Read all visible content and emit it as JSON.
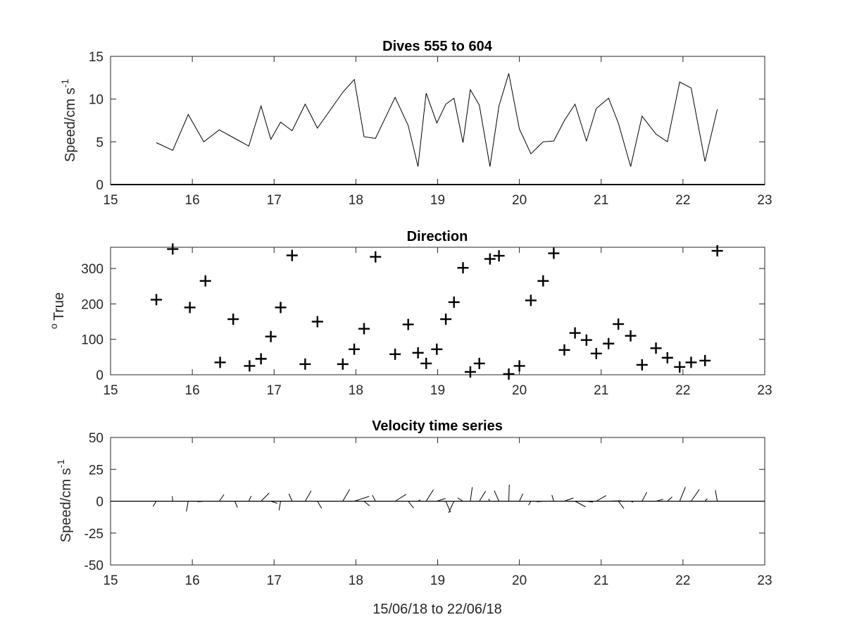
{
  "figure": {
    "background": "#ffffff",
    "axis_color": "#262626",
    "line_color": "#000000"
  },
  "chart_data": [
    {
      "type": "line",
      "title": "Dives 555 to 604",
      "ylabel": "Speed/cm s",
      "ylabel_sup": "-1",
      "xlim": [
        15,
        23
      ],
      "ylim": [
        0,
        15
      ],
      "xticks": [
        "15",
        "16",
        "17",
        "18",
        "19",
        "20",
        "21",
        "22",
        "23"
      ],
      "yticks": [
        "0",
        "5",
        "10",
        "15"
      ],
      "x": [
        15.56,
        15.76,
        15.95,
        16.14,
        16.33,
        16.52,
        16.69,
        16.84,
        16.96,
        17.08,
        17.22,
        17.38,
        17.53,
        17.84,
        17.98,
        18.1,
        18.24,
        18.48,
        18.64,
        18.76,
        18.86,
        18.99,
        19.1,
        19.2,
        19.31,
        19.4,
        19.51,
        19.64,
        19.75,
        19.87,
        20.0,
        20.14,
        20.29,
        20.42,
        20.55,
        20.68,
        20.82,
        20.94,
        21.09,
        21.21,
        21.36,
        21.5,
        21.67,
        21.81,
        21.96,
        22.1,
        22.27,
        22.42
      ],
      "y": [
        4.9,
        4.0,
        8.2,
        5.0,
        6.4,
        5.4,
        4.5,
        9.2,
        5.3,
        7.3,
        6.3,
        9.4,
        6.6,
        10.8,
        12.3,
        5.6,
        5.4,
        10.2,
        6.9,
        2.1,
        10.7,
        7.2,
        9.4,
        10.1,
        4.9,
        11.1,
        9.3,
        2.1,
        9.2,
        13.0,
        6.5,
        3.6,
        5.0,
        5.1,
        7.5,
        9.4,
        5.1,
        8.9,
        10.1,
        7.2,
        2.1,
        8.0,
        5.9,
        5.0,
        12.0,
        11.3,
        2.7,
        8.8
      ]
    },
    {
      "type": "scatter",
      "title": "Direction",
      "ylabel": "True",
      "ylabel_sup": "o",
      "xlim": [
        15,
        23
      ],
      "ylim": [
        0,
        360
      ],
      "xticks": [
        "15",
        "16",
        "17",
        "18",
        "19",
        "20",
        "21",
        "22",
        "23"
      ],
      "yticks": [
        "0",
        "100",
        "200",
        "300"
      ],
      "marker": "+",
      "x": [
        15.56,
        15.76,
        15.97,
        16.16,
        16.34,
        16.5,
        16.7,
        16.84,
        16.96,
        17.08,
        17.22,
        17.38,
        17.53,
        17.84,
        17.98,
        18.1,
        18.24,
        18.48,
        18.64,
        18.76,
        18.86,
        18.99,
        19.1,
        19.2,
        19.31,
        19.4,
        19.51,
        19.64,
        19.75,
        19.87,
        20.0,
        20.14,
        20.29,
        20.42,
        20.55,
        20.68,
        20.82,
        20.94,
        21.09,
        21.21,
        21.36,
        21.5,
        21.67,
        21.81,
        21.96,
        22.1,
        22.27,
        22.42
      ],
      "y": [
        212,
        355,
        190,
        265,
        35,
        157,
        25,
        45,
        108,
        190,
        337,
        30,
        150,
        30,
        72,
        130,
        333,
        58,
        142,
        62,
        32,
        72,
        157,
        205,
        302,
        8,
        32,
        327,
        336,
        2,
        25,
        210,
        265,
        343,
        70,
        118,
        98,
        60,
        88,
        143,
        110,
        28,
        75,
        48,
        22,
        35,
        40,
        350
      ]
    },
    {
      "type": "vector",
      "title": "Velocity time series",
      "ylabel": "Speed/cm s",
      "ylabel_sup": "-1",
      "xlabel": "15/06/18 to 22/06/18",
      "xlim": [
        15,
        23
      ],
      "ylim": [
        -50,
        50
      ],
      "xticks": [
        "15",
        "16",
        "17",
        "18",
        "19",
        "20",
        "21",
        "22",
        "23"
      ],
      "yticks": [
        "-50",
        "-25",
        "0",
        "25",
        "50"
      ],
      "x": [
        15.56,
        15.76,
        15.95,
        16.14,
        16.33,
        16.52,
        16.69,
        16.84,
        16.96,
        17.08,
        17.22,
        17.38,
        17.53,
        17.84,
        17.98,
        18.1,
        18.24,
        18.48,
        18.64,
        18.76,
        18.86,
        18.99,
        19.1,
        19.2,
        19.31,
        19.4,
        19.51,
        19.64,
        19.75,
        19.87,
        20.0,
        20.14,
        20.29,
        20.42,
        20.55,
        20.68,
        20.82,
        20.94,
        21.09,
        21.21,
        21.36,
        21.5,
        21.67,
        21.81,
        21.96,
        22.1,
        22.27,
        22.42
      ],
      "speed": [
        4.9,
        4.0,
        8.2,
        5.0,
        6.4,
        5.4,
        4.5,
        9.2,
        5.3,
        7.3,
        6.3,
        9.4,
        6.6,
        10.8,
        12.3,
        5.6,
        5.4,
        10.2,
        6.9,
        2.1,
        10.7,
        7.2,
        9.4,
        10.1,
        4.9,
        11.1,
        9.3,
        2.1,
        9.2,
        13.0,
        6.5,
        3.6,
        5.0,
        5.1,
        7.5,
        9.4,
        5.1,
        8.9,
        10.1,
        7.2,
        2.1,
        8.0,
        5.9,
        5.0,
        12.0,
        11.3,
        2.7,
        8.8
      ],
      "direction": [
        212,
        355,
        190,
        265,
        35,
        157,
        25,
        45,
        108,
        190,
        337,
        30,
        150,
        30,
        72,
        130,
        333,
        58,
        142,
        62,
        32,
        72,
        157,
        205,
        302,
        8,
        32,
        327,
        336,
        2,
        25,
        210,
        265,
        343,
        70,
        118,
        98,
        60,
        88,
        143,
        110,
        28,
        75,
        48,
        22,
        35,
        40,
        350
      ]
    }
  ]
}
